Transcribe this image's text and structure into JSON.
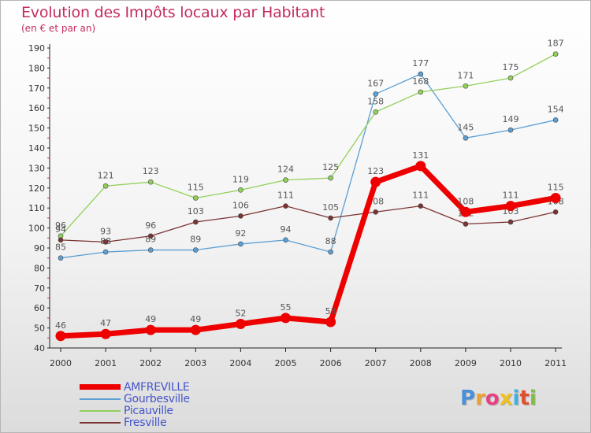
{
  "chart_data": {
    "type": "line",
    "title": "Evolution des Impôts locaux par Habitant",
    "subtitle": "(en € et par an)",
    "xlabel": "",
    "ylabel": "",
    "categories": [
      "2000",
      "2001",
      "2002",
      "2003",
      "2004",
      "2005",
      "2006",
      "2007",
      "2008",
      "2009",
      "2010",
      "2011"
    ],
    "ylim": [
      40,
      190
    ],
    "ytick_step": 10,
    "grid": false,
    "legend_position": "bottom-left",
    "series": [
      {
        "name": "Gourbesville",
        "color": "#5b9fd4",
        "values": [
          85,
          88,
          89,
          89,
          92,
          94,
          88,
          167,
          177,
          145,
          149,
          154
        ]
      },
      {
        "name": "Picauville",
        "color": "#92d05a",
        "values": [
          96,
          121,
          123,
          115,
          119,
          124,
          125,
          158,
          168,
          171,
          175,
          187
        ]
      },
      {
        "name": "Fresville",
        "color": "#7b3333",
        "values": [
          94,
          93,
          96,
          103,
          106,
          111,
          105,
          108,
          111,
          102,
          103,
          108
        ]
      },
      {
        "name": "AMFREVILLE",
        "color": "#ee0000",
        "values": [
          46,
          47,
          49,
          49,
          52,
          55,
          53,
          123,
          131,
          108,
          111,
          115
        ]
      }
    ],
    "legend_order": [
      "AMFREVILLE",
      "Gourbesville",
      "Picauville",
      "Fresville"
    ]
  },
  "logo": {
    "text": "Proxiti",
    "letters": [
      {
        "ch": "P",
        "color": "#4a90d9"
      },
      {
        "ch": "r",
        "color": "#f0a030"
      },
      {
        "ch": "o",
        "color": "#e84080"
      },
      {
        "ch": "x",
        "color": "#f0c020"
      },
      {
        "ch": "i",
        "color": "#40b0e0"
      },
      {
        "ch": "t",
        "color": "#e05030"
      },
      {
        "ch": "i",
        "color": "#80c040"
      }
    ]
  }
}
